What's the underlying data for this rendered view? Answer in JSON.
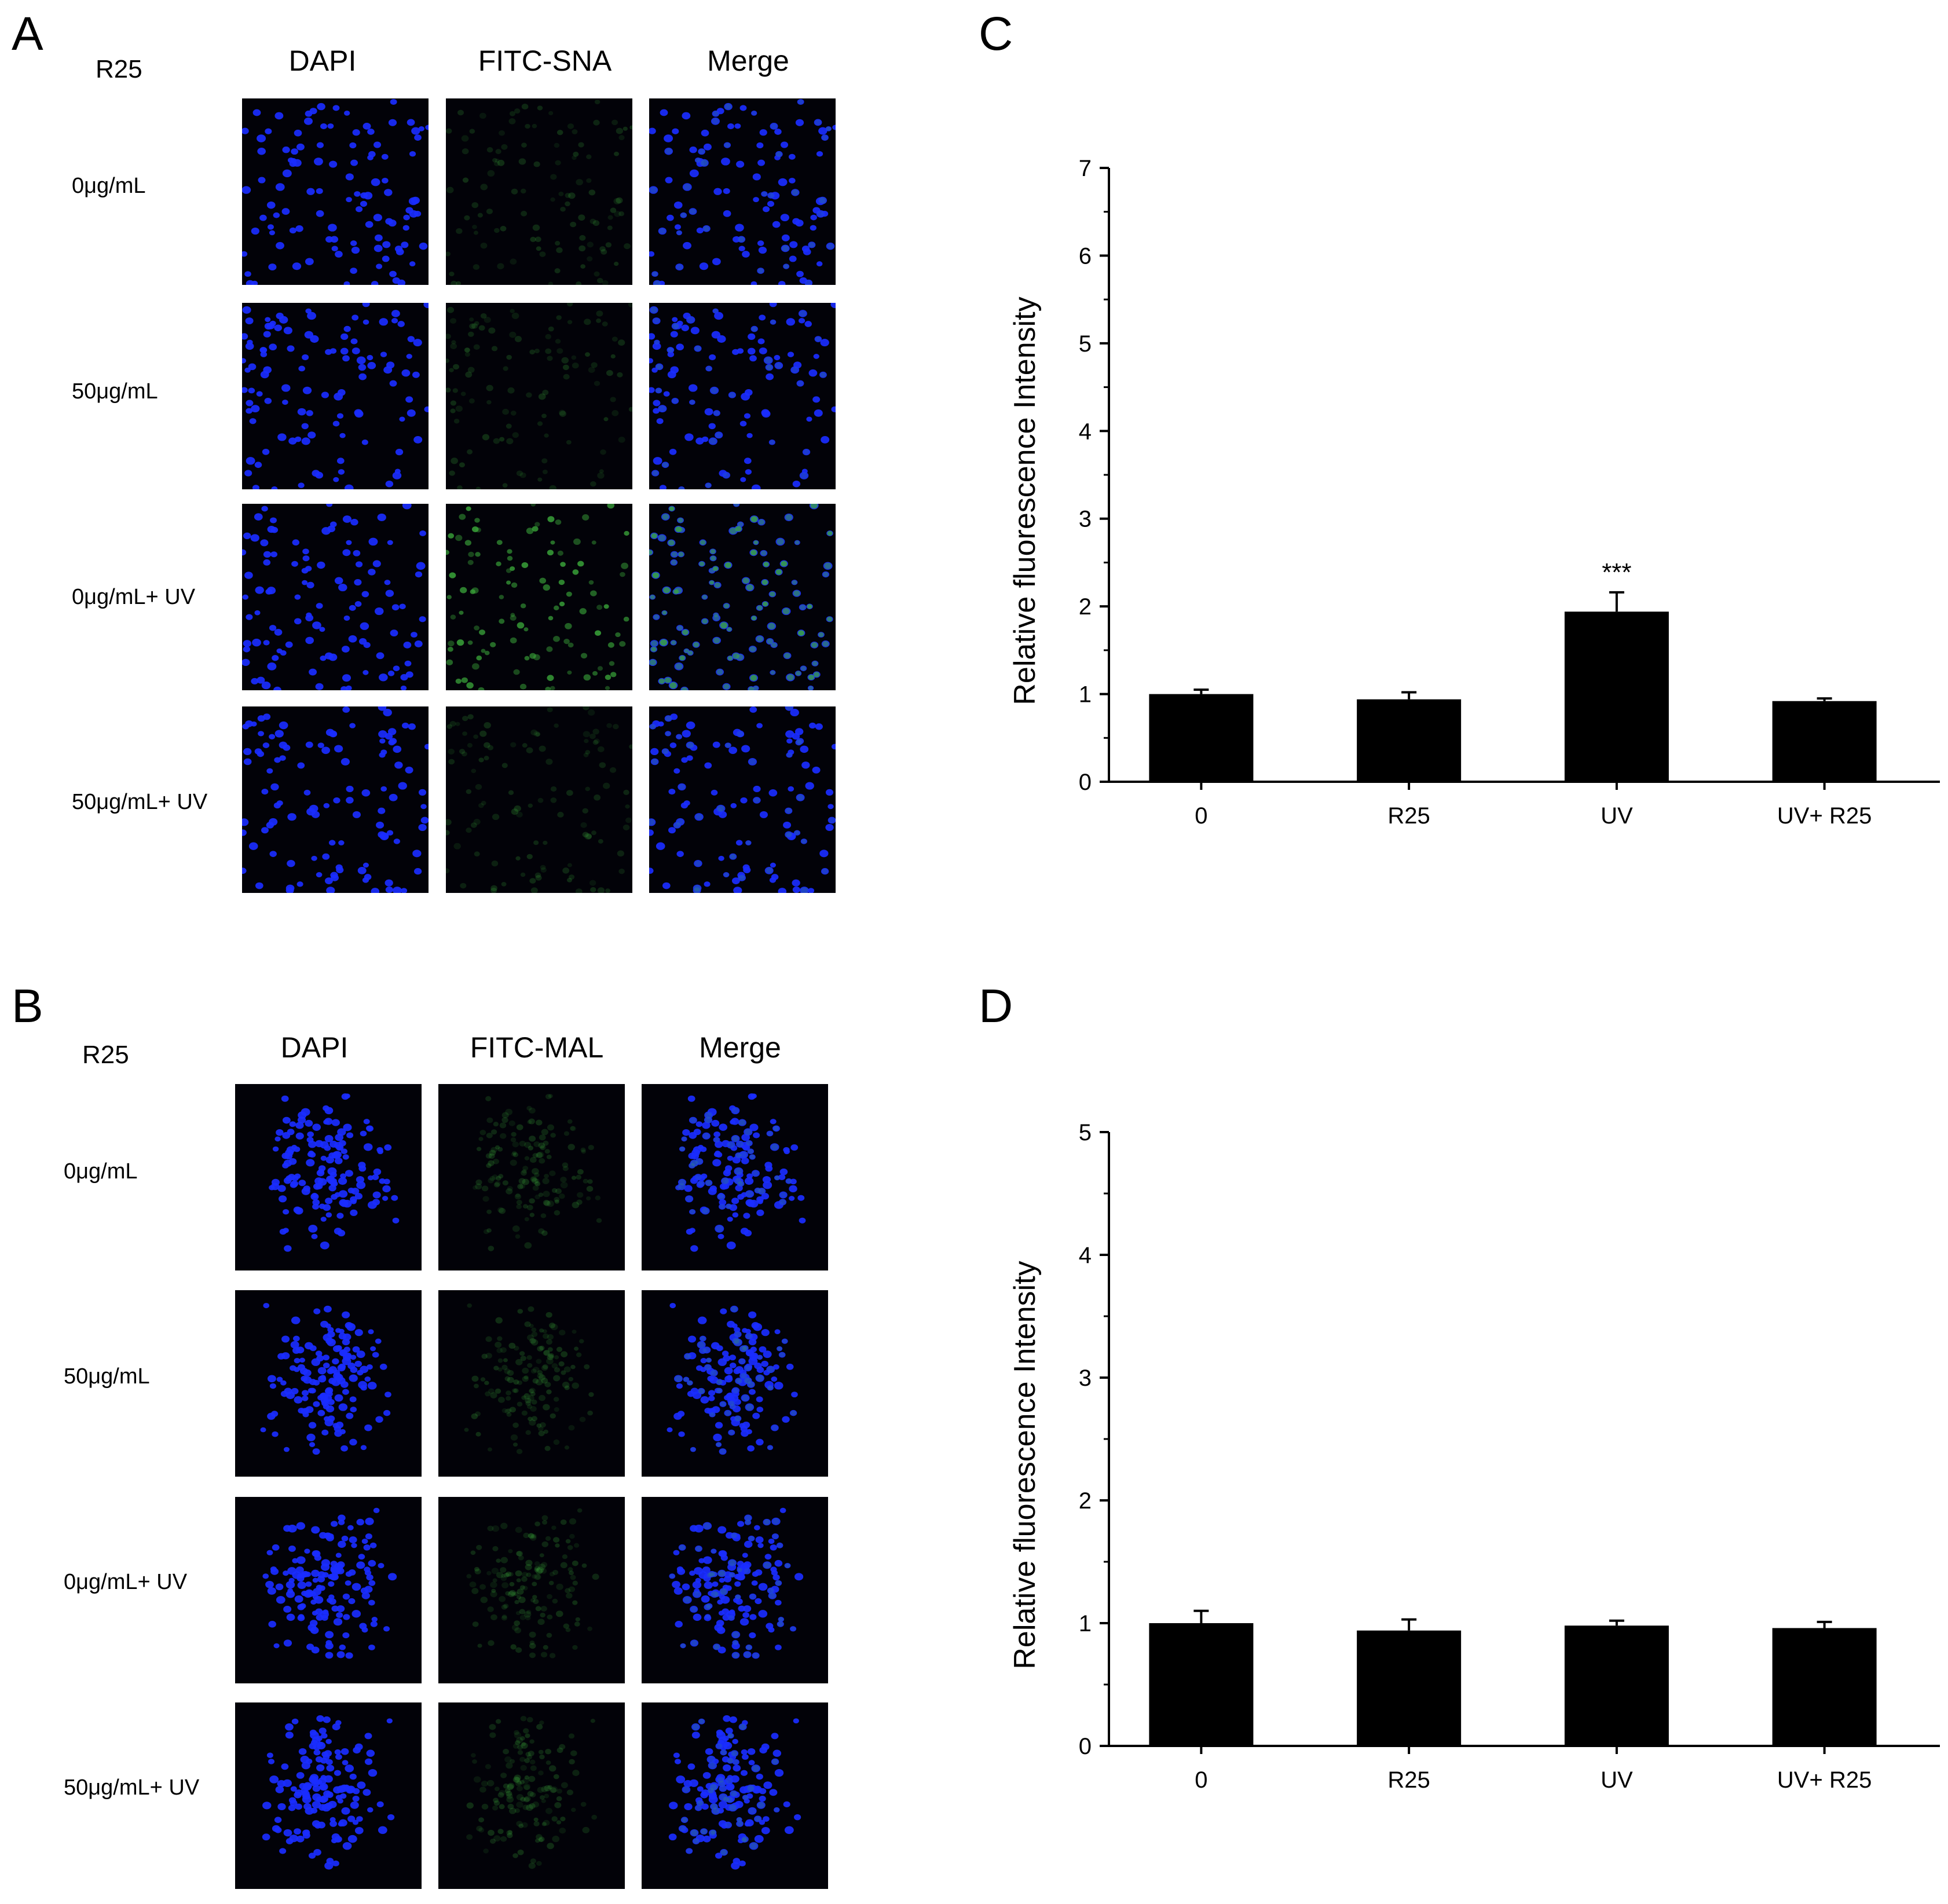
{
  "panels": {
    "A": {
      "letter": "A",
      "treatment": "R25",
      "columns": [
        "DAPI",
        "FITC-SNA",
        "Merge"
      ],
      "rows": [
        "0μg/mL",
        "50μg/mL",
        "0μg/mL+ UV",
        "50μg/mL+ UV"
      ]
    },
    "B": {
      "letter": "B",
      "treatment": "R25",
      "columns": [
        "DAPI",
        "FITC-MAL",
        "Merge"
      ],
      "rows": [
        "0μg/mL",
        "50μg/mL",
        "0μg/mL+ UV",
        "50μg/mL+ UV"
      ]
    },
    "C": {
      "letter": "C"
    },
    "D": {
      "letter": "D"
    }
  },
  "colors": {
    "dapi": "#1a2cff",
    "fitc": "#3aa63a",
    "bar": "#000000",
    "background": "#020208"
  },
  "chart_data": [
    {
      "panel": "C",
      "type": "bar",
      "title": "",
      "xlabel": "",
      "ylabel": "Relative fluorescence Intensity",
      "categories": [
        "0",
        "R25",
        "UV",
        "UV+ R25"
      ],
      "values": [
        1.0,
        0.94,
        1.94,
        0.92
      ],
      "errors": [
        0.05,
        0.08,
        0.22,
        0.03
      ],
      "annotations": [
        {
          "category": "UV",
          "text": "***"
        }
      ],
      "ylim": [
        0,
        7
      ],
      "yticks": [
        "0",
        "1",
        "2",
        "3",
        "4",
        "5",
        "6",
        "7"
      ],
      "grid": false
    },
    {
      "panel": "D",
      "type": "bar",
      "title": "",
      "xlabel": "",
      "ylabel": "Relative fluorescence Intensity",
      "categories": [
        "0",
        "R25",
        "UV",
        "UV+ R25"
      ],
      "values": [
        1.0,
        0.94,
        0.98,
        0.96
      ],
      "errors": [
        0.1,
        0.09,
        0.04,
        0.05
      ],
      "annotations": [],
      "ylim": [
        0,
        5
      ],
      "yticks": [
        "0",
        "1",
        "2",
        "3",
        "4",
        "5"
      ],
      "grid": false
    }
  ]
}
